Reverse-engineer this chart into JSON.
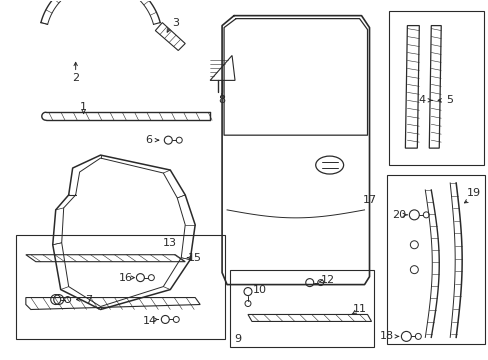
{
  "bg_color": "#ffffff",
  "line_color": "#2a2a2a",
  "fig_w": 4.89,
  "fig_h": 3.6,
  "dpi": 100
}
